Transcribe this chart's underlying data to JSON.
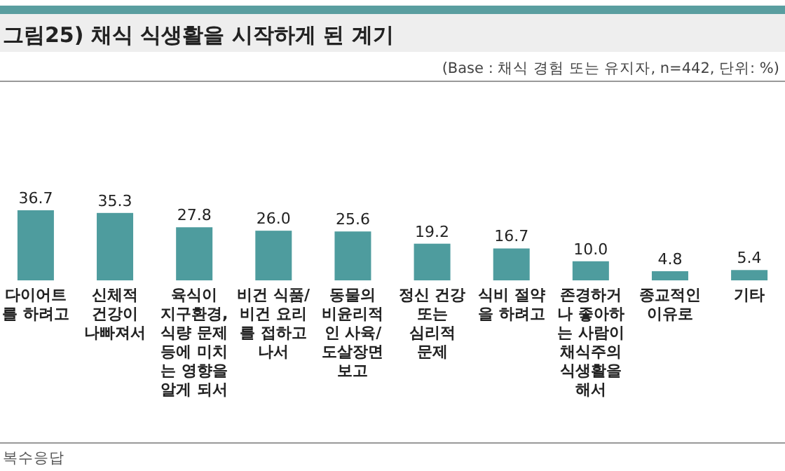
{
  "chart_data": {
    "type": "bar",
    "title": "그림25) 채식 식생활을 시작하게 된 계기",
    "subtitle": "(Base : 채식 경험 또는 유지자, n=442, 단위: %)",
    "categories": [
      "다이어트\n를 하려고",
      "신체적\n건강이\n나빠져서",
      "육식이\n지구환경,\n식량 문제\n등에 미치\n는 영향을\n알게 되서",
      "비건 식품/\n비건 요리\n를 접하고\n나서",
      "동물의\n비윤리적\n인 사육/\n도살장면\n보고",
      "정신 건강\n또는\n심리적\n문제",
      "식비 절약\n을 하려고",
      "존경하거\n나 좋아하\n는 사람이\n채식주의\n식생활을\n해서",
      "종교적인\n이유로",
      "기타"
    ],
    "values": [
      36.7,
      35.3,
      27.8,
      26.0,
      25.6,
      19.2,
      16.7,
      10.0,
      4.8,
      5.4
    ],
    "value_labels": [
      "36.7",
      "35.3",
      "27.8",
      "26.0",
      "25.6",
      "19.2",
      "16.7",
      "10.0",
      "4.8",
      "5.4"
    ],
    "color": "#4e9c9e",
    "annotations": [
      "복수응답"
    ]
  }
}
